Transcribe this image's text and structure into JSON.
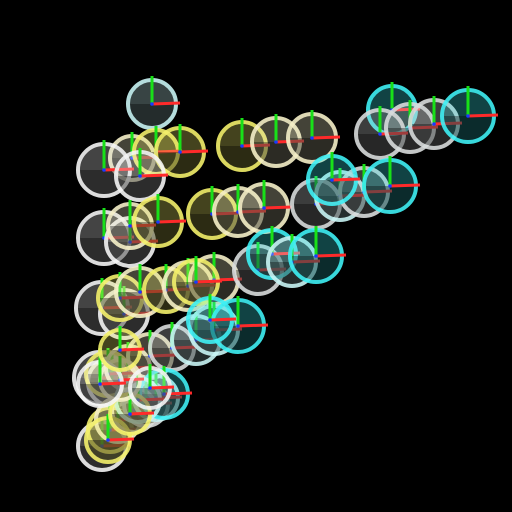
{
  "background": "#000000",
  "palette": {
    "yellow": "#f3f06a",
    "cream": "#f5f0c8",
    "white": "#f4f4f4",
    "pale_cyan": "#c8f4f4",
    "cyan": "#3ef0f4",
    "gray_white": "#d8dcdc",
    "x_axis": "#ff2a2a",
    "y_axis": "#18e018",
    "z_axis": "#1a3aff"
  },
  "marker_count": 62
}
